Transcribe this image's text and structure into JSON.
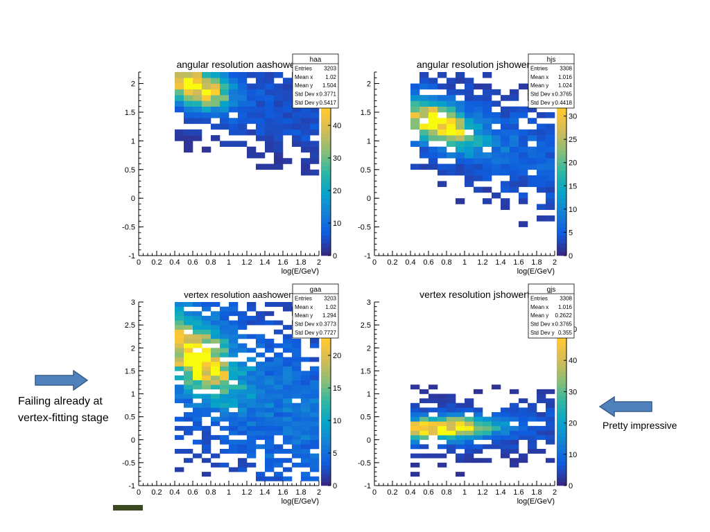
{
  "annotations": {
    "left_note": "Failing already at vertex-fitting stage",
    "right_note": "Pretty impressive",
    "arrow_color": "#4f81bd",
    "arrow_border": "#385d8a"
  },
  "chart_data": [
    {
      "type": "heatmap",
      "title": "angular resolution aashowerfit",
      "xlabel": "log(E/GeV)",
      "ylabel": "",
      "xlim": [
        0,
        2
      ],
      "ylim": [
        -1,
        2.2
      ],
      "xticks": [
        0,
        0.2,
        0.4,
        0.6,
        0.8,
        1,
        1.2,
        1.4,
        1.6,
        1.8,
        2
      ],
      "yticks": [
        -1,
        -0.5,
        0,
        0.5,
        1,
        1.5,
        2
      ],
      "zlim": [
        0,
        50
      ],
      "zticks": [
        0,
        10,
        20,
        30,
        40
      ],
      "stats": {
        "name": "haa",
        "rows": [
          [
            "Entries",
            "3203"
          ],
          [
            "Mean x",
            "1.02"
          ],
          [
            "Mean y",
            "1.504"
          ],
          [
            "Std Dev x",
            "0.3771"
          ],
          [
            "Std Dev y",
            "0.5417"
          ]
        ]
      },
      "bin_width_x": 0.1,
      "bin_width_y": 0.1,
      "peak": {
        "x": 0.65,
        "y": 1.95,
        "sx": 0.18,
        "sy": 0.22,
        "value": 48
      },
      "ridge_slope": -0.4,
      "region": {
        "x": [
          0.4,
          2.0
        ],
        "y": [
          -0.5,
          2.3
        ]
      },
      "fill": 0.9,
      "floor": 3
    },
    {
      "type": "heatmap",
      "title": "angular resolution jshowerfit",
      "xlabel": "log(E/GeV)",
      "ylabel": "",
      "xlim": [
        0,
        2
      ],
      "ylim": [
        -1,
        2.2
      ],
      "xticks": [
        0,
        0.2,
        0.4,
        0.6,
        0.8,
        1,
        1.2,
        1.4,
        1.6,
        1.8,
        2
      ],
      "yticks": [
        -1,
        -0.5,
        0,
        0.5,
        1,
        1.5,
        2
      ],
      "zlim": [
        0,
        35
      ],
      "zticks": [
        0,
        5,
        10,
        15,
        20,
        25,
        30
      ],
      "stats": {
        "name": "hjs",
        "rows": [
          [
            "Entries",
            "3308"
          ],
          [
            "Mean x",
            "1.016"
          ],
          [
            "Mean y",
            "1.024"
          ],
          [
            "Std Dev x",
            "0.3765"
          ],
          [
            "Std Dev y",
            "0.4418"
          ]
        ]
      },
      "bin_width_x": 0.1,
      "bin_width_y": 0.1,
      "peak": {
        "x": 0.72,
        "y": 1.3,
        "sx": 0.22,
        "sy": 0.22,
        "value": 33
      },
      "ridge_slope": -0.55,
      "region": {
        "x": [
          0.4,
          2.0
        ],
        "y": [
          -0.5,
          2.3
        ]
      },
      "fill": 0.85,
      "floor": 3
    },
    {
      "type": "heatmap",
      "title": "vertex resolution aashowerfit",
      "xlabel": "log(E/GeV)",
      "ylabel": "",
      "xlim": [
        0,
        2
      ],
      "ylim": [
        -1,
        3
      ],
      "xticks": [
        0,
        0.2,
        0.4,
        0.6,
        0.8,
        1,
        1.2,
        1.4,
        1.6,
        1.8,
        2
      ],
      "yticks": [
        -1,
        -0.5,
        0,
        0.5,
        1,
        1.5,
        2,
        2.5,
        3
      ],
      "zlim": [
        0,
        25
      ],
      "zticks": [
        0,
        5,
        10,
        15,
        20
      ],
      "stats": {
        "name": "gaa",
        "rows": [
          [
            "Entries",
            "3203"
          ],
          [
            "Mean x",
            "1.02"
          ],
          [
            "Mean y",
            "1.294"
          ],
          [
            "Std Dev x",
            "0.3773"
          ],
          [
            "Std Dev y",
            "0.7727"
          ]
        ]
      },
      "bin_width_x": 0.1,
      "bin_width_y": 0.1,
      "peak": {
        "x": 0.65,
        "y": 1.8,
        "sx": 0.2,
        "sy": 0.45,
        "value": 24
      },
      "ridge_slope": -1.1,
      "region": {
        "x": [
          0.4,
          2.0
        ],
        "y": [
          -0.9,
          3.0
        ]
      },
      "fill": 0.85,
      "floor": 3
    },
    {
      "type": "heatmap",
      "title": "vertex resolution jshowerfit",
      "xlabel": "log(E/GeV)",
      "ylabel": "",
      "xlim": [
        0,
        2
      ],
      "ylim": [
        -1,
        3
      ],
      "xticks": [
        0,
        0.2,
        0.4,
        0.6,
        0.8,
        1,
        1.2,
        1.4,
        1.6,
        1.8,
        2
      ],
      "yticks": [
        -1,
        -0.5,
        0,
        0.5,
        1,
        1.5,
        2,
        2.5,
        3
      ],
      "zlim": [
        0,
        52
      ],
      "zticks": [
        0,
        10,
        20,
        30,
        40,
        50
      ],
      "stats": {
        "name": "gjs",
        "rows": [
          [
            "Entries",
            "3308"
          ],
          [
            "Mean x",
            "1.016"
          ],
          [
            "Mean y",
            "0.2622"
          ],
          [
            "Std Dev x",
            "0.3765"
          ],
          [
            "Std Dev y",
            "0.355"
          ]
        ]
      },
      "bin_width_x": 0.1,
      "bin_width_y": 0.1,
      "peak": {
        "x": 0.75,
        "y": 0.25,
        "sx": 0.3,
        "sy": 0.16,
        "value": 50
      },
      "ridge_slope": 0.05,
      "region": {
        "x": [
          0.4,
          2.0
        ],
        "y": [
          -0.9,
          1.9
        ]
      },
      "fill": 0.8,
      "floor": 3
    }
  ]
}
